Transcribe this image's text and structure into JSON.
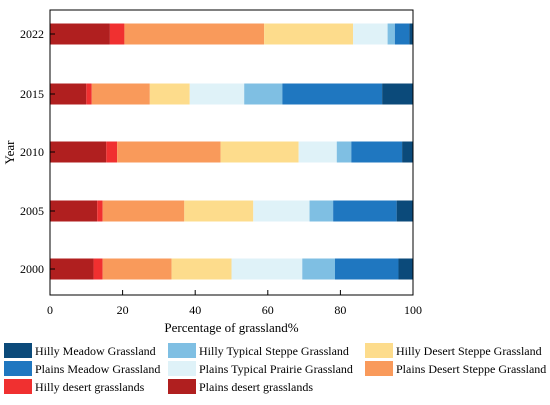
{
  "chart_data": {
    "type": "bar",
    "orientation": "horizontal",
    "stacked": true,
    "title": "",
    "xlabel": "Percentage of grassland%",
    "ylabel": "Year",
    "xlim": [
      0,
      100
    ],
    "x_ticks": [
      0,
      20,
      40,
      60,
      80,
      100
    ],
    "grid": false,
    "legend_position": "bottom",
    "categories": [
      "2000",
      "2005",
      "2010",
      "2015",
      "2022"
    ],
    "series": [
      {
        "name": "Plains desert grasslands",
        "color": "#b01f1f",
        "values": [
          12.0,
          13.0,
          15.5,
          10.0,
          16.5
        ]
      },
      {
        "name": "Hilly desert grasslands",
        "color": "#f03030",
        "values": [
          2.5,
          1.5,
          3.0,
          1.5,
          4.0
        ]
      },
      {
        "name": "Plains Desert Steppe Grassland",
        "color": "#f99a5b",
        "values": [
          19.0,
          22.5,
          28.5,
          16.0,
          38.5
        ]
      },
      {
        "name": "Hilly Desert Steppe Grassland",
        "color": "#fddc8c",
        "values": [
          16.5,
          19.0,
          21.5,
          11.0,
          24.5
        ]
      },
      {
        "name": "Plains Typical Prairie Grassland",
        "color": "#dff2f8",
        "values": [
          19.5,
          15.5,
          10.5,
          15.0,
          9.5
        ]
      },
      {
        "name": "Hilly Typical Steppe Grassland",
        "color": "#7fbfe3",
        "values": [
          9.0,
          6.5,
          4.0,
          10.5,
          2.0
        ]
      },
      {
        "name": "Plains Meadow Grassland",
        "color": "#1f77c0",
        "values": [
          17.5,
          17.5,
          14.0,
          27.5,
          4.0
        ]
      },
      {
        "name": "Hilly Meadow Grassland",
        "color": "#0b4a7a",
        "values": [
          4.0,
          4.5,
          3.0,
          8.5,
          1.0
        ]
      }
    ]
  }
}
